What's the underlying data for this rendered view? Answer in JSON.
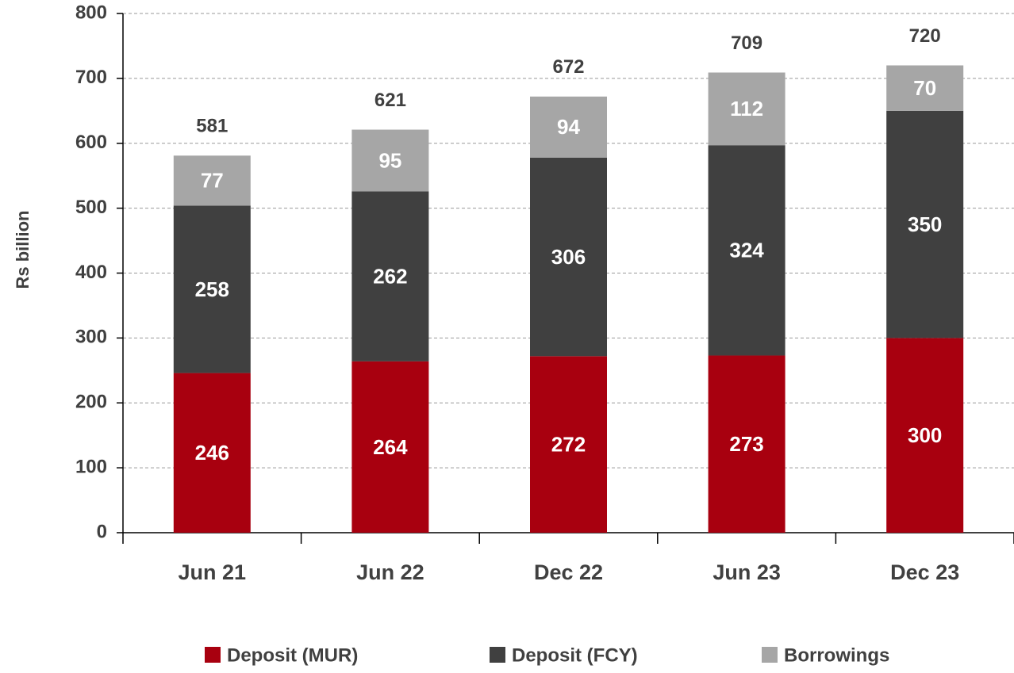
{
  "chart_data": {
    "type": "stacked_bar",
    "y_label": "Rs billion",
    "categories": [
      "Jun 21",
      "Jun 22",
      "Dec 22",
      "Jun 23",
      "Dec 23"
    ],
    "series": [
      {
        "name": "Deposit (MUR)",
        "color": "#a8000f",
        "values": [
          246,
          264,
          272,
          273,
          300
        ]
      },
      {
        "name": "Deposit (FCY)",
        "color": "#404040",
        "values": [
          258,
          262,
          306,
          324,
          350
        ]
      },
      {
        "name": "Borrowings",
        "color": "#a6a6a6",
        "values": [
          77,
          95,
          94,
          112,
          70
        ]
      }
    ],
    "totals": [
      581,
      621,
      672,
      709,
      720
    ],
    "ylim": [
      0,
      800
    ],
    "yticks": [
      0,
      100,
      200,
      300,
      400,
      500,
      600,
      700,
      800
    ],
    "grid": true,
    "legend": "bottom"
  }
}
